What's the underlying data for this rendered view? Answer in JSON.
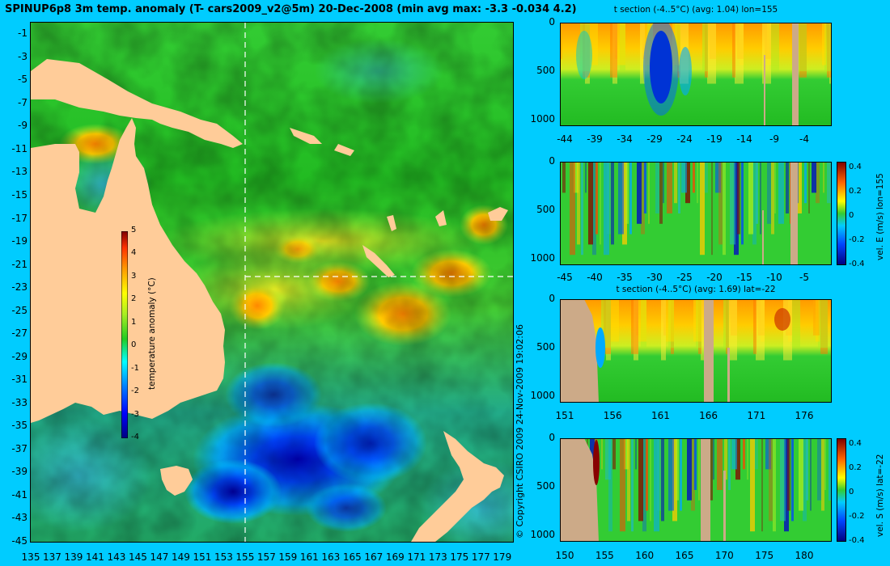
{
  "title": "SPINUP6p8 3m temp. anomaly (T- cars2009_v2@5m) 20-Dec-2008 (min avg max: -3.3 -0.034 4.2)",
  "copyright": "© Copyright CSIRO 2009   24-Nov-2009 19:02:06",
  "colors": {
    "background": "#00ccff",
    "land": "#ffcc99",
    "section_land": "#ccaa88",
    "ocean_base": "#22bb22",
    "colormap": [
      "#00007f",
      "#0000ff",
      "#007fff",
      "#00ffff",
      "#7fff7f",
      "#ffff00",
      "#ff7f00",
      "#ff0000",
      "#7f0000"
    ]
  },
  "map": {
    "x_ticks": [
      "135",
      "137",
      "139",
      "141",
      "143",
      "145",
      "147",
      "149",
      "151",
      "153",
      "155",
      "157",
      "159",
      "161",
      "163",
      "165",
      "167",
      "169",
      "171",
      "173",
      "175",
      "177",
      "179"
    ],
    "y_ticks": [
      "-1",
      "-3",
      "-5",
      "-7",
      "-9",
      "-11",
      "-13",
      "-15",
      "-17",
      "-19",
      "-21",
      "-23",
      "-25",
      "-27",
      "-29",
      "-31",
      "-33",
      "-35",
      "-37",
      "-39",
      "-41",
      "-43",
      "-45"
    ],
    "lon_range": [
      135,
      180
    ],
    "lat_range": [
      -45,
      0
    ],
    "section_lon": 155,
    "section_lat": -22,
    "colorbar": {
      "label": "temperature anomaly (°C)",
      "ticks": [
        "5",
        "4",
        "3",
        "2",
        "1",
        "0",
        "-1",
        "-2",
        "-3",
        "-4"
      ],
      "range": [
        -4,
        5
      ]
    }
  },
  "panels": [
    {
      "id": "t-lon",
      "title": "t section (-4..5°C) (avg: 1.04) lon=155",
      "x_ticks": [
        "-44",
        "-39",
        "-34",
        "-29",
        "-24",
        "-19",
        "-14",
        "-9",
        "-4"
      ],
      "y_ticks": [
        "0",
        "500",
        "1000"
      ],
      "colorbar": null
    },
    {
      "id": "v-lon",
      "title": "",
      "x_ticks": [
        "-45",
        "-40",
        "-35",
        "-30",
        "-25",
        "-20",
        "-15",
        "-10",
        "-5"
      ],
      "y_ticks": [
        "0",
        "500",
        "1000"
      ],
      "colorbar": {
        "label": "vel. E (m/s) lon=155",
        "ticks": [
          "0.4",
          "0.2",
          "0",
          "-0.2",
          "-0.4"
        ]
      }
    },
    {
      "id": "t-lat",
      "title": "t section (-4..5°C) (avg: 1.69) lat=-22",
      "x_ticks": [
        "151",
        "156",
        "161",
        "166",
        "171",
        "176"
      ],
      "y_ticks": [
        "0",
        "500",
        "1000"
      ],
      "colorbar": null
    },
    {
      "id": "v-lat",
      "title": "",
      "x_ticks": [
        "150",
        "155",
        "160",
        "165",
        "170",
        "175",
        "180"
      ],
      "y_ticks": [
        "0",
        "500",
        "1000"
      ],
      "colorbar": {
        "label": "vel. S (m/s) lat=-22",
        "ticks": [
          "0.4",
          "0.2",
          "0",
          "-0.2",
          "-0.4"
        ]
      }
    }
  ]
}
